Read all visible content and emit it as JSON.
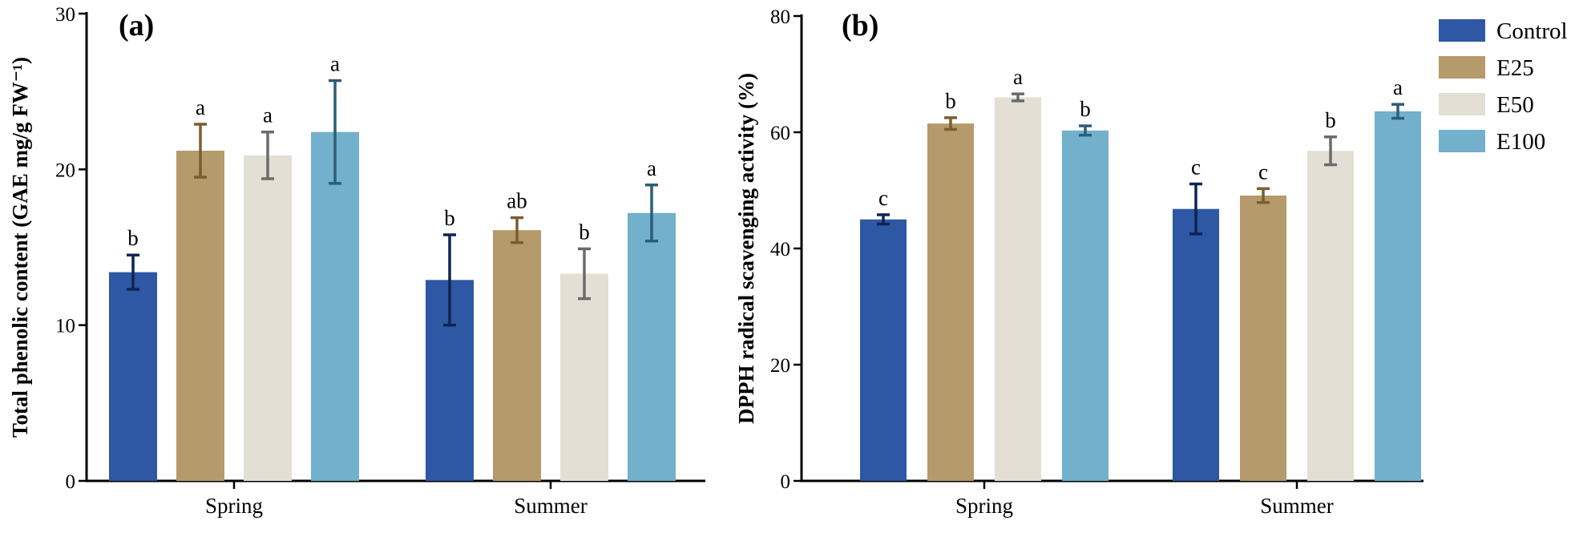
{
  "colors": {
    "Control": "#2e57a4",
    "E25": "#b59a6c",
    "E50": "#e3dfd4",
    "E100": "#73b0cb",
    "err_Control": "#0f2452",
    "err_E25": "#7a5e32",
    "err_E50": "#6b6b6b",
    "err_E100": "#2c5e78"
  },
  "legend": {
    "items": [
      "Control",
      "E25",
      "E50",
      "E100"
    ]
  },
  "chart_data": [
    {
      "type": "bar",
      "panel": "(a)",
      "ylabel": "Total phenolic content (GAE mg/g FW⁻¹)",
      "xlabel": "",
      "ylim": [
        0,
        30
      ],
      "yticks": [
        0,
        10,
        20,
        30
      ],
      "categories": [
        "Spring",
        "Summer"
      ],
      "series": [
        {
          "name": "Control",
          "values": [
            13.4,
            12.9
          ],
          "errors": [
            1.1,
            2.9
          ],
          "letters": [
            "b",
            "b"
          ]
        },
        {
          "name": "E25",
          "values": [
            21.2,
            16.1
          ],
          "errors": [
            1.7,
            0.8
          ],
          "letters": [
            "a",
            "ab"
          ]
        },
        {
          "name": "E50",
          "values": [
            20.9,
            13.3
          ],
          "errors": [
            1.5,
            1.6
          ],
          "letters": [
            "a",
            "b"
          ]
        },
        {
          "name": "E100",
          "values": [
            22.4,
            17.2
          ],
          "errors": [
            3.3,
            1.8
          ],
          "letters": [
            "a",
            "a"
          ]
        }
      ]
    },
    {
      "type": "bar",
      "panel": "(b)",
      "ylabel": "DPPH radical scavenging activity (%)",
      "xlabel": "",
      "ylim": [
        0,
        80
      ],
      "yticks": [
        0,
        20,
        40,
        60,
        80
      ],
      "categories": [
        "Spring",
        "Summer"
      ],
      "series": [
        {
          "name": "Control",
          "values": [
            45.0,
            46.8
          ],
          "errors": [
            0.8,
            4.3
          ],
          "letters": [
            "c",
            "c"
          ]
        },
        {
          "name": "E25",
          "values": [
            61.5,
            49.1
          ],
          "errors": [
            1.0,
            1.2
          ],
          "letters": [
            "b",
            "c"
          ]
        },
        {
          "name": "E50",
          "values": [
            66.0,
            56.8
          ],
          "errors": [
            0.6,
            2.4
          ],
          "letters": [
            "a",
            "b"
          ]
        },
        {
          "name": "E100",
          "values": [
            60.3,
            63.6
          ],
          "errors": [
            0.8,
            1.2
          ],
          "letters": [
            "b",
            "a"
          ]
        }
      ]
    }
  ]
}
